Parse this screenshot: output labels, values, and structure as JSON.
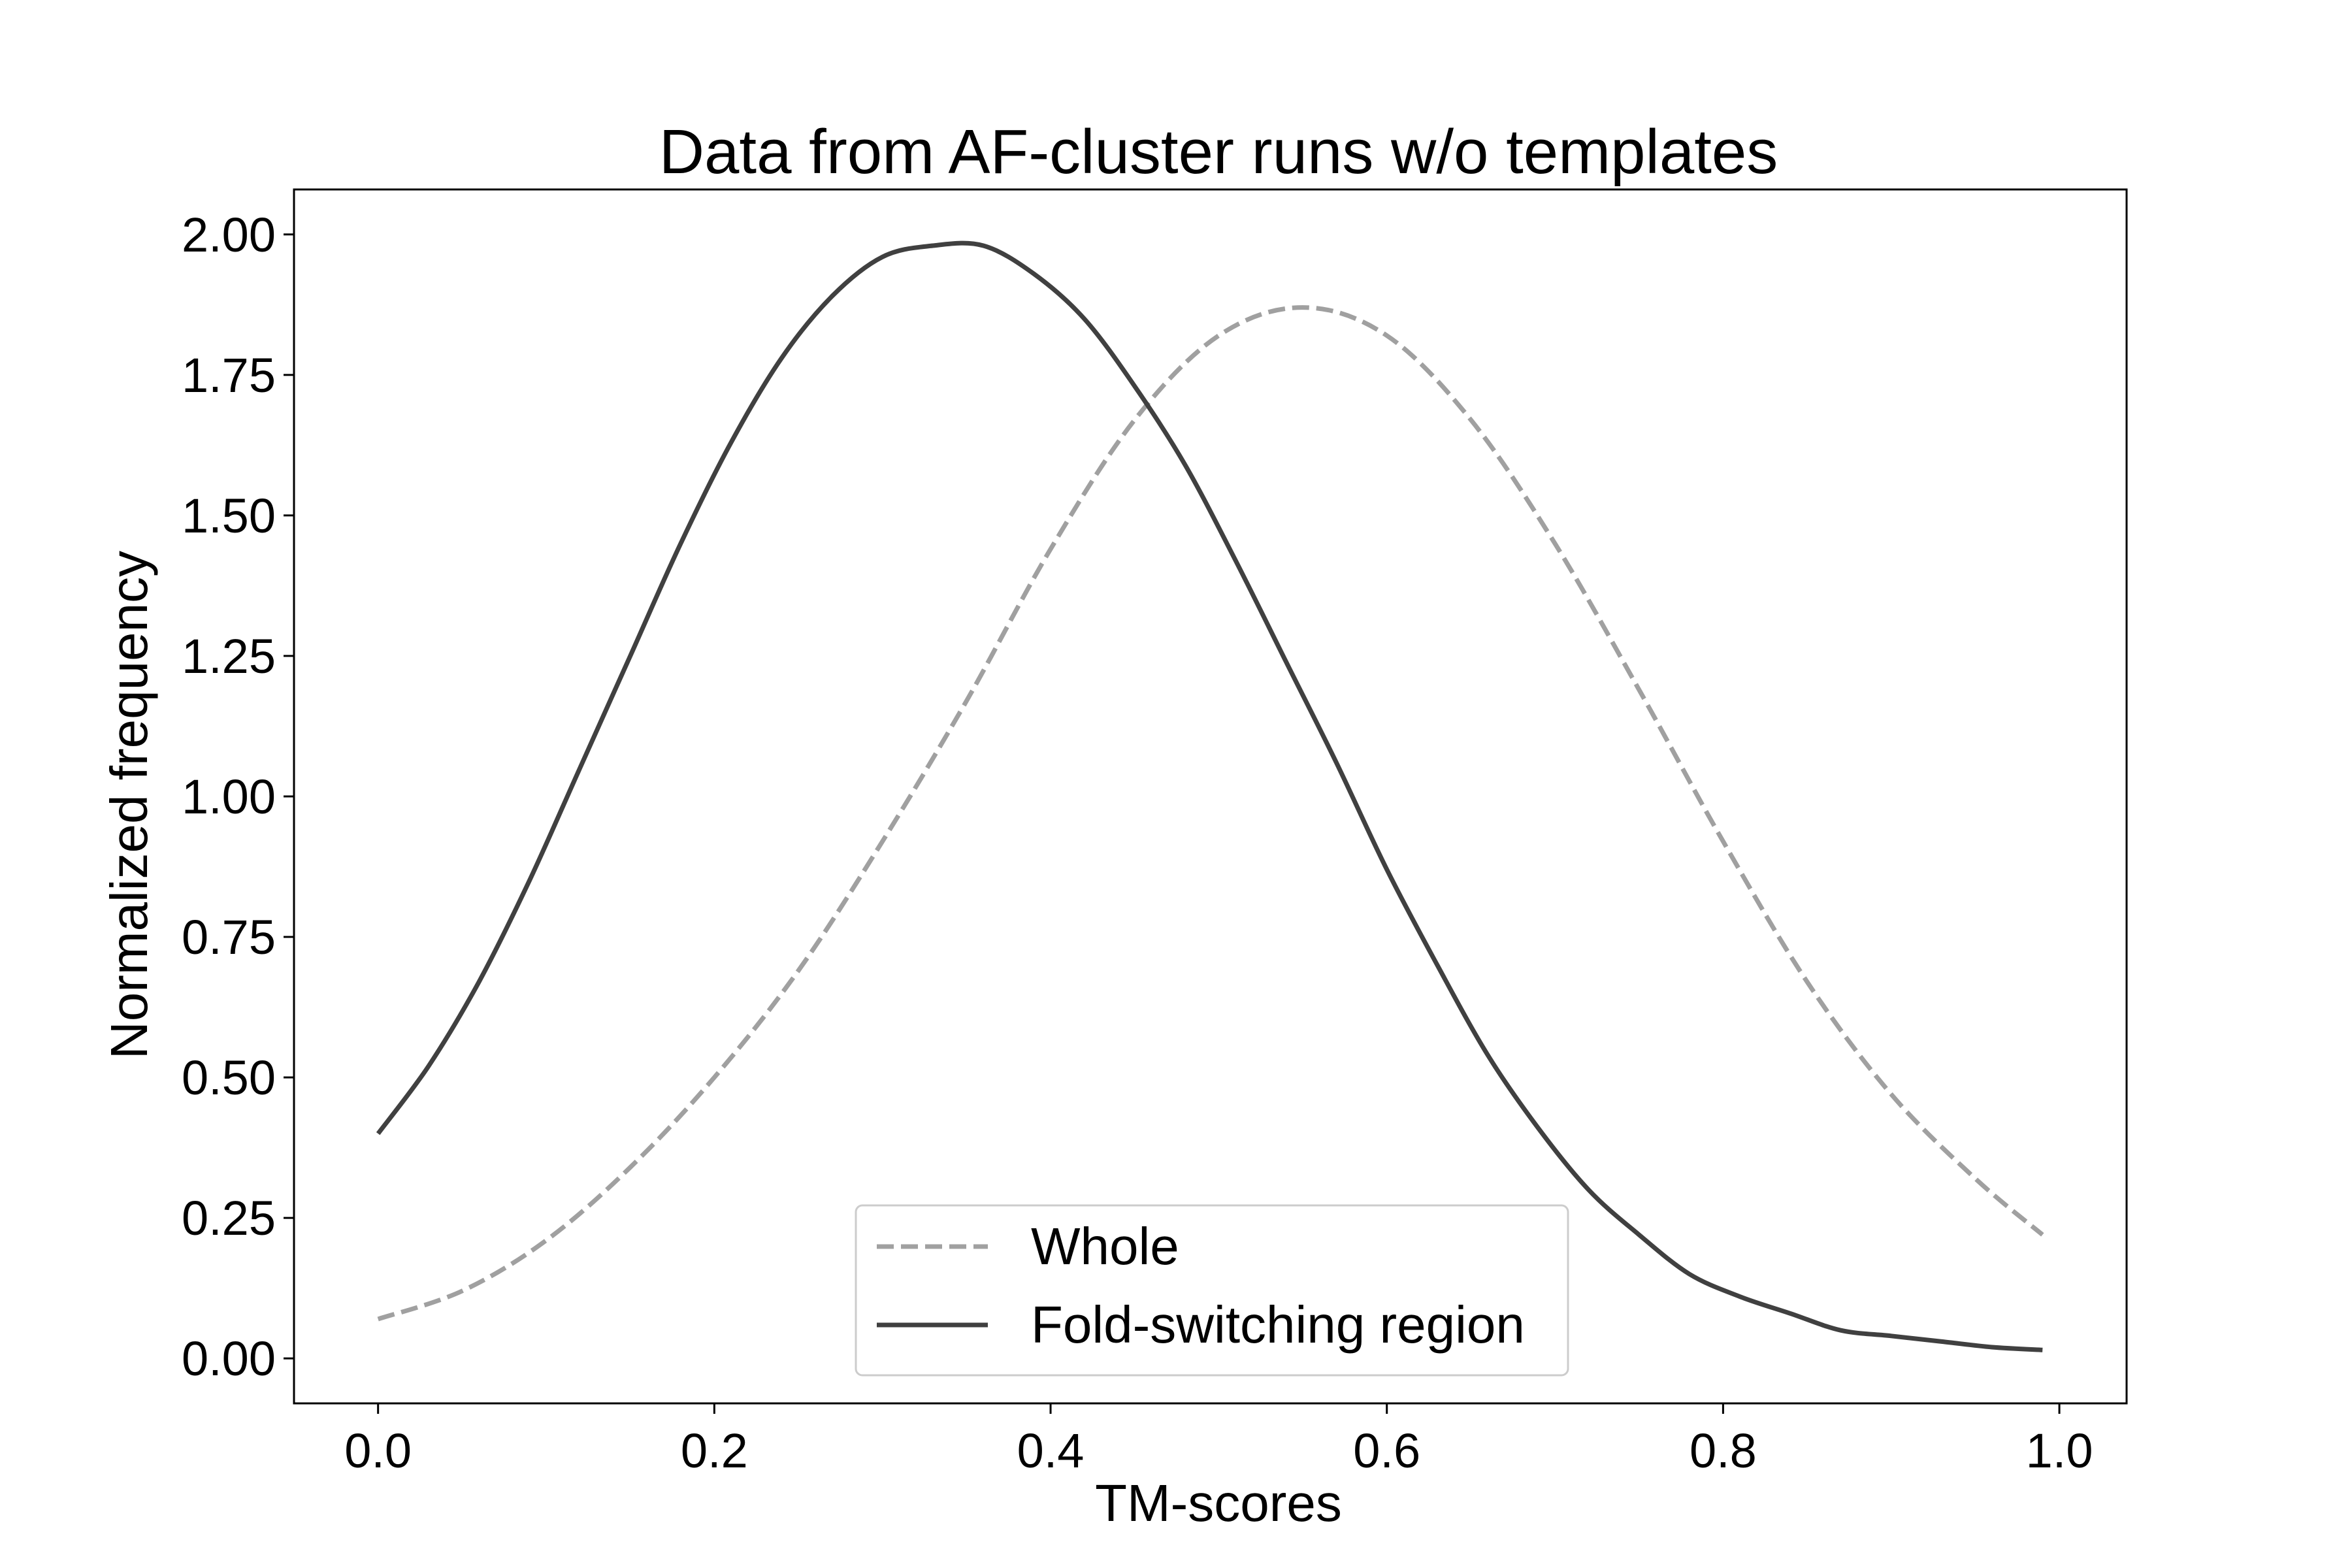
{
  "chart_data": {
    "type": "line",
    "title": "Data from AF-cluster runs w/o templates",
    "xlabel": "TM-scores",
    "ylabel": "Normalized frequency",
    "xlim": [
      -0.05,
      1.04
    ],
    "ylim": [
      -0.08,
      2.08
    ],
    "x_ticks": [
      "0.0",
      "0.2",
      "0.4",
      "0.6",
      "0.8",
      "1.0"
    ],
    "y_ticks": [
      "0.00",
      "0.25",
      "0.50",
      "0.75",
      "1.00",
      "1.25",
      "1.50",
      "1.75",
      "2.00"
    ],
    "grid": false,
    "legend_position": "lower center",
    "series": [
      {
        "name": "Whole",
        "style": "dashed",
        "color": "#a0a0a0",
        "x": [
          0.0,
          0.05,
          0.1,
          0.15,
          0.2,
          0.25,
          0.3,
          0.35,
          0.4,
          0.45,
          0.5,
          0.55,
          0.6,
          0.65,
          0.7,
          0.75,
          0.8,
          0.85,
          0.9,
          0.95,
          0.99
        ],
        "y": [
          0.07,
          0.12,
          0.21,
          0.34,
          0.5,
          0.69,
          0.92,
          1.17,
          1.44,
          1.67,
          1.82,
          1.87,
          1.82,
          1.67,
          1.45,
          1.19,
          0.92,
          0.67,
          0.47,
          0.32,
          0.22
        ]
      },
      {
        "name": "Fold-switching region",
        "style": "solid",
        "color": "#404040",
        "x": [
          0.0,
          0.03,
          0.06,
          0.09,
          0.12,
          0.15,
          0.18,
          0.21,
          0.24,
          0.27,
          0.3,
          0.33,
          0.36,
          0.39,
          0.42,
          0.45,
          0.48,
          0.51,
          0.54,
          0.57,
          0.6,
          0.63,
          0.66,
          0.69,
          0.72,
          0.75,
          0.78,
          0.81,
          0.84,
          0.87,
          0.9,
          0.93,
          0.96,
          0.99
        ],
        "y": [
          0.4,
          0.52,
          0.67,
          0.85,
          1.05,
          1.25,
          1.45,
          1.63,
          1.78,
          1.89,
          1.96,
          1.98,
          1.98,
          1.93,
          1.85,
          1.73,
          1.59,
          1.42,
          1.24,
          1.06,
          0.87,
          0.7,
          0.54,
          0.41,
          0.3,
          0.22,
          0.15,
          0.11,
          0.08,
          0.05,
          0.04,
          0.03,
          0.02,
          0.015
        ]
      }
    ]
  }
}
